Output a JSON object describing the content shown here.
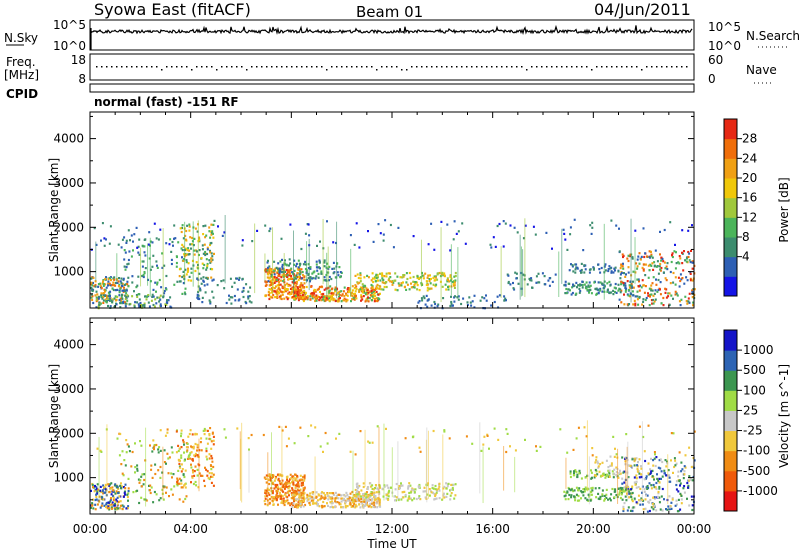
{
  "header": {
    "station": "Syowa East (fitACF)",
    "beam": "Beam 01",
    "date": "04/Jun/2011"
  },
  "nsky_panel": {
    "label": "N.Sky",
    "left_ticks": [
      "10^5",
      "10^0"
    ],
    "right_ticks": [
      "10^5",
      "10^0"
    ],
    "right_label": "N.Search"
  },
  "freq_panel": {
    "label_top": "Freq.",
    "label_bottom": "[MHz]",
    "left_ticks": [
      "18",
      "8"
    ],
    "right_ticks": [
      "60",
      "0"
    ],
    "right_label": "Nave"
  },
  "cpid_panel": {
    "label": "CPID",
    "mode": "normal (fast) -151 RF"
  },
  "x_axis": {
    "ticks": [
      "00:00",
      "04:00",
      "08:00",
      "12:00",
      "16:00",
      "20:00",
      "00:00"
    ],
    "label": "Time UT"
  },
  "power_colorbar": {
    "label": "Power [dB]",
    "ticks": [
      "28",
      "24",
      "20",
      "16",
      "12",
      "8",
      "4"
    ]
  },
  "velocity_colorbar": {
    "label": "Velocity [m s^-1]",
    "ticks": [
      "1000",
      "500",
      "100",
      "25",
      "-25",
      "-100",
      "-500",
      "-1000"
    ]
  },
  "colors": {
    "power": [
      "#1414e6",
      "#2d5fb4",
      "#3c8c6e",
      "#4bb45a",
      "#a0c83c",
      "#f0c80a",
      "#f0a014",
      "#f06e0a",
      "#e62814"
    ],
    "velocity": [
      "#e61414",
      "#f05a0a",
      "#f08c14",
      "#f0c83c",
      "#c8c8c8",
      "#a0dc46",
      "#3c9650",
      "#2d64b4",
      "#1414c8"
    ]
  },
  "chart_data": [
    {
      "type": "heatmap",
      "title": "Power",
      "x": [
        "00:00",
        "04:00",
        "08:00",
        "12:00",
        "16:00",
        "20:00",
        "00:00"
      ],
      "xlabel": "Time UT",
      "ylabel": "Slant Range [km]",
      "y_ticks": [
        1000,
        2000,
        3000,
        4000
      ],
      "ylim": [
        180,
        4600
      ],
      "colorbar_ticks": [
        4,
        8,
        12,
        16,
        20,
        24,
        28
      ],
      "colorbar_range": [
        0,
        30
      ]
    },
    {
      "type": "heatmap",
      "title": "Velocity",
      "x": [
        "00:00",
        "04:00",
        "08:00",
        "12:00",
        "16:00",
        "20:00",
        "00:00"
      ],
      "xlabel": "Time UT",
      "ylabel": "Slant Range [km]",
      "y_ticks": [
        1000,
        2000,
        3000,
        4000
      ],
      "ylim": [
        180,
        4600
      ],
      "colorbar_ticks": [
        1000,
        500,
        100,
        25,
        -25,
        -100,
        -500,
        -1000
      ]
    }
  ]
}
